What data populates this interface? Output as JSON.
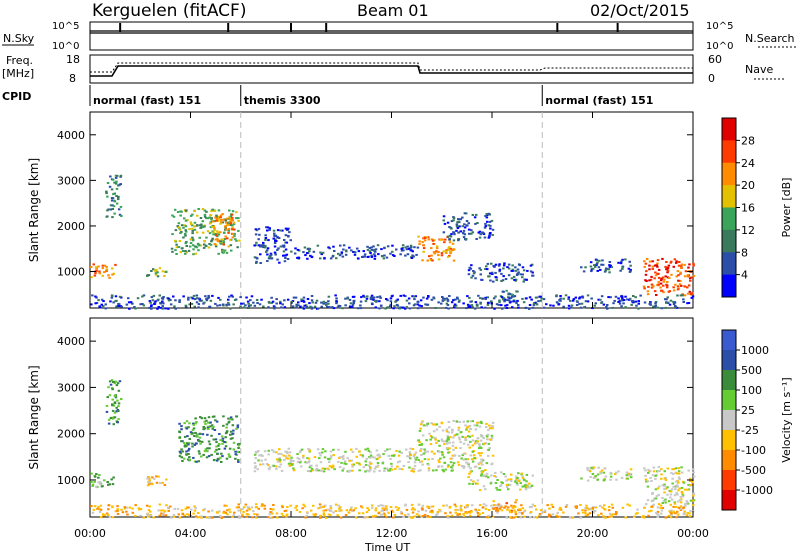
{
  "header": {
    "site": "Kerguelen (fitACF)",
    "beam": "Beam 01",
    "date": "02/Oct/2015"
  },
  "top_panels": {
    "nsky_label": "N.Sky",
    "nsky_ticks": [
      "10^5",
      "10^0"
    ],
    "nsearch_label": "N.Search",
    "freq_label_1": "Freq.",
    "freq_label_2": "[MHz]",
    "freq_ticks": [
      "18",
      "8"
    ],
    "nave_label": "Nave",
    "nave_ticks": [
      "60",
      "0"
    ],
    "cpid_label": "CPID",
    "cpid_segments": [
      {
        "label": "normal (fast) 151",
        "start": 0,
        "end": 6
      },
      {
        "label": "themis 3300",
        "start": 6,
        "end": 18
      },
      {
        "label": "normal (fast) 151",
        "start": 18,
        "end": 24
      }
    ]
  },
  "x_axis": {
    "label": "Time UT",
    "ticks": [
      "00:00",
      "04:00",
      "08:00",
      "12:00",
      "16:00",
      "20:00",
      "00:00"
    ],
    "tick_values": [
      0,
      4,
      8,
      12,
      16,
      20,
      24
    ]
  },
  "colors": {
    "power_bar": [
      "#0000ff",
      "#2b4ea8",
      "#3a7a5c",
      "#3aa45a",
      "#e3c000",
      "#ff8c00",
      "#ff3b00",
      "#e00000"
    ],
    "velocity_bar": [
      "#e00000",
      "#ff3b00",
      "#ff8c00",
      "#ffc000",
      "#c8c8c8",
      "#66cc33",
      "#3a8c3a",
      "#2b4ea8",
      "#3a5bd0"
    ]
  },
  "chart_data": [
    {
      "type": "heatmap",
      "title": "Power",
      "xlabel": "Time UT",
      "ylabel": "Slant Range [km]",
      "xlim": [
        0,
        24
      ],
      "ylim": [
        200,
        4500
      ],
      "yticks": [
        1000,
        2000,
        3000,
        4000
      ],
      "colorbar_label": "Power [dB]",
      "colorbar_ticks": [
        "4",
        "8",
        "12",
        "16",
        "20",
        "24",
        "28"
      ],
      "blobs": [
        {
          "t0": 0.0,
          "t1": 1.0,
          "r0": 850,
          "r1": 1200,
          "level": 5
        },
        {
          "t0": 0.6,
          "t1": 1.2,
          "r0": 2200,
          "r1": 3200,
          "level": 2
        },
        {
          "t0": 2.2,
          "t1": 3.0,
          "r0": 900,
          "r1": 1100,
          "level": 3
        },
        {
          "t0": 3.2,
          "t1": 5.9,
          "r0": 1400,
          "r1": 2400,
          "level": 3
        },
        {
          "t0": 4.8,
          "t1": 5.7,
          "r0": 1600,
          "r1": 2300,
          "level": 5
        },
        {
          "t0": 6.5,
          "t1": 8.0,
          "r0": 1200,
          "r1": 2000,
          "level": 1
        },
        {
          "t0": 8.0,
          "t1": 13.0,
          "r0": 1300,
          "r1": 1600,
          "level": 1
        },
        {
          "t0": 13.0,
          "t1": 14.5,
          "r0": 1250,
          "r1": 1800,
          "level": 5
        },
        {
          "t0": 14.0,
          "t1": 16.0,
          "r0": 1700,
          "r1": 2300,
          "level": 1
        },
        {
          "t0": 15.0,
          "t1": 17.6,
          "r0": 800,
          "r1": 1200,
          "level": 1
        },
        {
          "t0": 16.0,
          "t1": 17.0,
          "r0": 350,
          "r1": 600,
          "level": 2
        },
        {
          "t0": 19.5,
          "t1": 21.5,
          "r0": 1000,
          "r1": 1300,
          "level": 1
        },
        {
          "t0": 22.0,
          "t1": 24.0,
          "r0": 500,
          "r1": 1300,
          "level": 6
        },
        {
          "t0": 0.0,
          "t1": 24.0,
          "r0": 200,
          "r1": 500,
          "level": 1
        }
      ]
    },
    {
      "type": "heatmap",
      "title": "Velocity",
      "xlabel": "Time UT",
      "ylabel": "Slant Range [km]",
      "xlim": [
        0,
        24
      ],
      "ylim": [
        200,
        4500
      ],
      "yticks": [
        1000,
        2000,
        3000,
        4000
      ],
      "colorbar_label": "Velocity [m s⁻¹]",
      "colorbar_ticks": [
        "-1000",
        "-500",
        "-100",
        "-25",
        "25",
        "100",
        "500",
        "1000"
      ],
      "blobs": [
        {
          "t0": 0.0,
          "t1": 0.9,
          "r0": 850,
          "r1": 1200,
          "level": 5
        },
        {
          "t0": 0.6,
          "t1": 1.2,
          "r0": 2200,
          "r1": 3200,
          "level": 6
        },
        {
          "t0": 2.2,
          "t1": 3.0,
          "r0": 900,
          "r1": 1100,
          "level": 3
        },
        {
          "t0": 3.5,
          "t1": 5.9,
          "r0": 1400,
          "r1": 2400,
          "level": 6
        },
        {
          "t0": 6.5,
          "t1": 13.0,
          "r0": 1200,
          "r1": 1700,
          "level": 4
        },
        {
          "t0": 13.0,
          "t1": 16.0,
          "r0": 1200,
          "r1": 2300,
          "level": 4
        },
        {
          "t0": 15.0,
          "t1": 17.6,
          "r0": 800,
          "r1": 1200,
          "level": 4
        },
        {
          "t0": 16.0,
          "t1": 17.0,
          "r0": 350,
          "r1": 600,
          "level": 2
        },
        {
          "t0": 19.5,
          "t1": 21.5,
          "r0": 1000,
          "r1": 1300,
          "level": 4
        },
        {
          "t0": 22.0,
          "t1": 24.0,
          "r0": 500,
          "r1": 1300,
          "level": 4
        },
        {
          "t0": 0.0,
          "t1": 24.0,
          "r0": 200,
          "r1": 500,
          "level": 3
        }
      ]
    }
  ]
}
